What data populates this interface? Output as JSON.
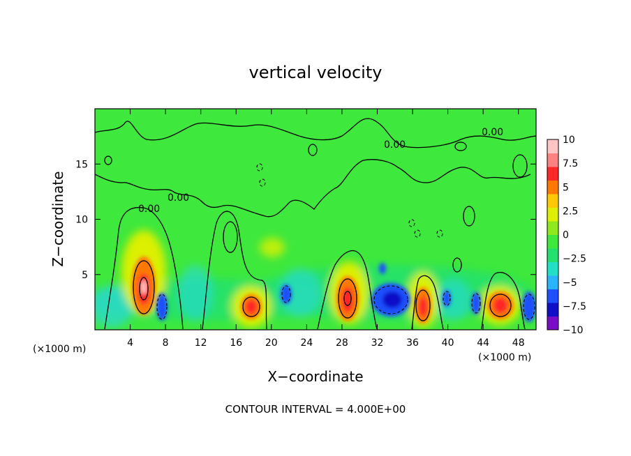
{
  "chart_data": {
    "type": "heatmap",
    "title": "vertical velocity",
    "xlabel": "X−coordinate",
    "ylabel": "Z−coordinate",
    "x_unit_left": "(×1000 m)",
    "x_unit_right": "(×1000 m)",
    "xlim": [
      0,
      50
    ],
    "ylim": [
      0,
      20
    ],
    "x_ticks": [
      "4",
      "8",
      "12",
      "16",
      "20",
      "24",
      "28",
      "32",
      "36",
      "40",
      "44",
      "48"
    ],
    "x_tick_values": [
      4,
      8,
      12,
      16,
      20,
      24,
      28,
      32,
      36,
      40,
      44,
      48
    ],
    "y_ticks": [
      "5",
      "10",
      "15"
    ],
    "y_tick_values": [
      5,
      10,
      15
    ],
    "colorbar": {
      "range": [
        -10,
        10
      ],
      "tick_labels": [
        "10",
        "7.5",
        "5",
        "2.5",
        "0",
        "−2.5",
        "−5",
        "−7.5",
        "−10"
      ],
      "tick_values": [
        10,
        7.5,
        5,
        2.5,
        0,
        -2.5,
        -5,
        -7.5,
        -10
      ],
      "colors": [
        "#7a0ec8",
        "#1010c8",
        "#1e50ff",
        "#28b4ff",
        "#22e0c8",
        "#22e070",
        "#3ee83c",
        "#8fe81a",
        "#dcf000",
        "#ffc800",
        "#ff7800",
        "#ff2828",
        "#ff8282",
        "#ffc4c4"
      ]
    },
    "contour_labels": [
      "0.00",
      "0.00",
      "0.00",
      "0.00"
    ],
    "features": [
      {
        "kind": "updraft",
        "x": 5.5,
        "z": 3.5,
        "w": 10
      },
      {
        "kind": "downdraft",
        "x": 7.8,
        "z": 2.0,
        "w": -6
      },
      {
        "kind": "updraft",
        "x": 17.5,
        "z": 2.2,
        "w": 7
      },
      {
        "kind": "updraft",
        "x": 29.0,
        "z": 3.0,
        "w": 8
      },
      {
        "kind": "downdraft",
        "x": 33.5,
        "z": 2.5,
        "w": -7
      },
      {
        "kind": "updraft",
        "x": 37.3,
        "z": 2.5,
        "w": 7
      },
      {
        "kind": "downdraft",
        "x": 43.5,
        "z": 2.0,
        "w": -5
      },
      {
        "kind": "updraft",
        "x": 45.8,
        "z": 2.2,
        "w": 7
      },
      {
        "kind": "downdraft",
        "x": 49.0,
        "z": 2.0,
        "w": -5
      }
    ],
    "contour_interval_text": "CONTOUR INTERVAL = 4.000E+00"
  }
}
